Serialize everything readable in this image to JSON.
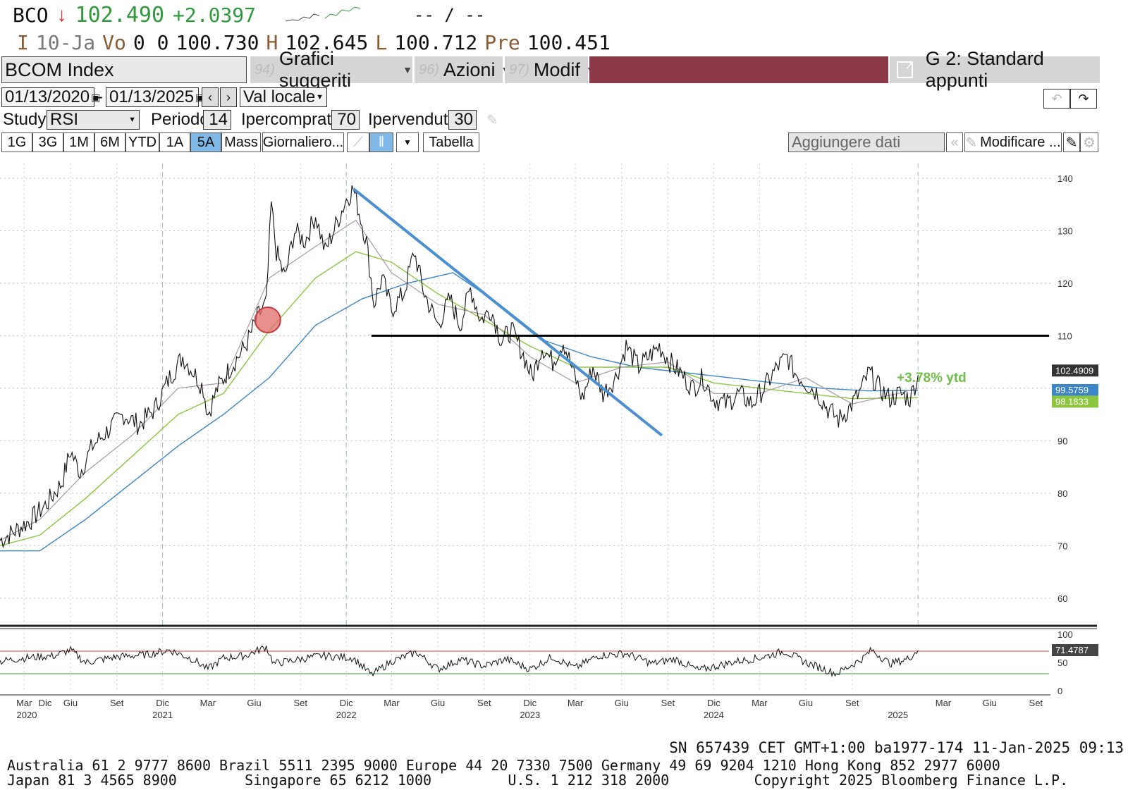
{
  "quote": {
    "ticker": "BCO",
    "arrow": "↓",
    "price": "102.490",
    "change": "+2.0397",
    "time_placeholder": "-- / --"
  },
  "ohlc": {
    "i_label": "I",
    "date": "10-Ja",
    "vo_label": "Vo",
    "vo_value": "0 0",
    "open": "100.730",
    "h_label": "H",
    "high": "102.645",
    "l_label": "L",
    "low": "100.712",
    "pre_label": "Pre",
    "prev": "100.451"
  },
  "toolbar": {
    "security": "BCOM Index",
    "menu1_num": "94)",
    "menu1": "Grafici suggeriti",
    "menu2_num": "96)",
    "menu2": "Azioni",
    "menu3_num": "97)",
    "menu3": "Modif",
    "template": "G 2: Standard appunti"
  },
  "controls": {
    "start_date": "01/13/2020",
    "end_date": "01/13/2025",
    "currency": "Val locale",
    "study_label": "Study",
    "study_value": "RSI",
    "period_label": "Periodo",
    "period_value": "14",
    "overbought_label": "Ipercomprato",
    "overbought_value": "70",
    "oversold_label": "Ipervenduto",
    "oversold_value": "30"
  },
  "range_buttons": [
    "1G",
    "3G",
    "1M",
    "6M",
    "YTD",
    "1A",
    "5A",
    "Mass"
  ],
  "range_selected": "5A",
  "frequency": "Giornaliero...",
  "table_label": "Tabella",
  "add_data": "Aggiungere dati",
  "modify_label": "Modificare ...",
  "colors": {
    "price": "#111111",
    "ma_blue": "#3d86c6",
    "ma_green": "#8cc63f",
    "ma_gray": "#a89aa8",
    "trend": "#4a90d0",
    "support": "#000000",
    "toolbar_bar": "#8d3a48",
    "positive": "#2f9a3c"
  },
  "annotation": "+3.78% ytd",
  "chart_data": {
    "type": "line",
    "x_range": [
      "2020-01-13",
      "2025-09-30"
    ],
    "ylim": [
      55,
      142
    ],
    "y_ticks": [
      140,
      130,
      120,
      110,
      100,
      90,
      80,
      70,
      60
    ],
    "grid": true,
    "price_series": [
      [
        "2020-01-13",
        71
      ],
      [
        "2020-02-15",
        73
      ],
      [
        "2020-03-15",
        75
      ],
      [
        "2020-04-15",
        78
      ],
      [
        "2020-05-15",
        82
      ],
      [
        "2020-06-01",
        88
      ],
      [
        "2020-06-20",
        84
      ],
      [
        "2020-07-15",
        89
      ],
      [
        "2020-08-15",
        92
      ],
      [
        "2020-09-15",
        95
      ],
      [
        "2020-10-15",
        93
      ],
      [
        "2020-11-15",
        96
      ],
      [
        "2020-12-15",
        102
      ],
      [
        "2021-01-10",
        106
      ],
      [
        "2021-02-01",
        103
      ],
      [
        "2021-02-20",
        100
      ],
      [
        "2021-03-01",
        95
      ],
      [
        "2021-03-20",
        100
      ],
      [
        "2021-04-15",
        104
      ],
      [
        "2021-05-15",
        108
      ],
      [
        "2021-06-10",
        114
      ],
      [
        "2021-06-25",
        116
      ],
      [
        "2021-07-05",
        135
      ],
      [
        "2021-07-15",
        126
      ],
      [
        "2021-08-01",
        121
      ],
      [
        "2021-08-20",
        130
      ],
      [
        "2021-09-10",
        128
      ],
      [
        "2021-10-01",
        133
      ],
      [
        "2021-10-20",
        126
      ],
      [
        "2021-11-10",
        131
      ],
      [
        "2021-12-01",
        136
      ],
      [
        "2021-12-15",
        138
      ],
      [
        "2022-01-10",
        128
      ],
      [
        "2022-01-25",
        116
      ],
      [
        "2022-02-10",
        121
      ],
      [
        "2022-03-01",
        115
      ],
      [
        "2022-03-25",
        118
      ],
      [
        "2022-04-15",
        126
      ],
      [
        "2022-05-05",
        118
      ],
      [
        "2022-06-01",
        112
      ],
      [
        "2022-06-25",
        117
      ],
      [
        "2022-07-15",
        112
      ],
      [
        "2022-08-05",
        119
      ],
      [
        "2022-08-25",
        113
      ],
      [
        "2022-09-15",
        115
      ],
      [
        "2022-10-05",
        109
      ],
      [
        "2022-10-25",
        111
      ],
      [
        "2022-11-15",
        107
      ],
      [
        "2022-12-05",
        102
      ],
      [
        "2022-12-25",
        108
      ],
      [
        "2023-01-15",
        105
      ],
      [
        "2023-02-05",
        109
      ],
      [
        "2023-02-25",
        103
      ],
      [
        "2023-03-15",
        98
      ],
      [
        "2023-04-05",
        104
      ],
      [
        "2023-04-25",
        99
      ],
      [
        "2023-05-20",
        102
      ],
      [
        "2023-06-10",
        108
      ],
      [
        "2023-07-05",
        104
      ],
      [
        "2023-07-25",
        106
      ],
      [
        "2023-08-15",
        108
      ],
      [
        "2023-09-05",
        105
      ],
      [
        "2023-09-25",
        103
      ],
      [
        "2023-10-20",
        100
      ],
      [
        "2023-11-10",
        102
      ],
      [
        "2023-12-01",
        98
      ],
      [
        "2023-12-25",
        97
      ],
      [
        "2024-01-20",
        99
      ],
      [
        "2024-02-15",
        97
      ],
      [
        "2024-03-10",
        100
      ],
      [
        "2024-04-05",
        104
      ],
      [
        "2024-04-25",
        106
      ],
      [
        "2024-05-10",
        103
      ],
      [
        "2024-06-01",
        101
      ],
      [
        "2024-06-25",
        99
      ],
      [
        "2024-07-15",
        96
      ],
      [
        "2024-08-05",
        94
      ],
      [
        "2024-08-25",
        96
      ],
      [
        "2024-09-15",
        99
      ],
      [
        "2024-10-05",
        103
      ],
      [
        "2024-10-25",
        100
      ],
      [
        "2024-11-15",
        98
      ],
      [
        "2024-12-05",
        99
      ],
      [
        "2024-12-25",
        98
      ],
      [
        "2025-01-10",
        102.49
      ]
    ],
    "ma_blue": [
      [
        "2020-01-13",
        69
      ],
      [
        "2020-04-01",
        69
      ],
      [
        "2020-07-01",
        75
      ],
      [
        "2020-10-01",
        82
      ],
      [
        "2021-01-01",
        89
      ],
      [
        "2021-04-01",
        95
      ],
      [
        "2021-07-01",
        102
      ],
      [
        "2021-10-01",
        112
      ],
      [
        "2022-01-01",
        117
      ],
      [
        "2022-04-01",
        120
      ],
      [
        "2022-07-01",
        122
      ],
      [
        "2022-10-01",
        116
      ],
      [
        "2023-01-01",
        109
      ],
      [
        "2023-04-01",
        106
      ],
      [
        "2023-07-01",
        104
      ],
      [
        "2023-10-01",
        103
      ],
      [
        "2024-01-01",
        102
      ],
      [
        "2024-04-01",
        101
      ],
      [
        "2024-07-01",
        100
      ],
      [
        "2024-10-01",
        99.5
      ],
      [
        "2025-01-10",
        99.58
      ]
    ],
    "ma_green": [
      [
        "2020-01-13",
        70
      ],
      [
        "2020-04-01",
        72
      ],
      [
        "2020-07-01",
        79
      ],
      [
        "2020-10-01",
        87
      ],
      [
        "2021-01-01",
        95
      ],
      [
        "2021-04-01",
        99
      ],
      [
        "2021-07-01",
        111
      ],
      [
        "2021-10-01",
        121
      ],
      [
        "2021-12-20",
        126
      ],
      [
        "2022-03-01",
        124
      ],
      [
        "2022-06-01",
        118
      ],
      [
        "2022-09-01",
        113
      ],
      [
        "2022-12-01",
        108
      ],
      [
        "2023-03-01",
        104
      ],
      [
        "2023-06-01",
        104
      ],
      [
        "2023-09-01",
        104
      ],
      [
        "2023-12-01",
        101
      ],
      [
        "2024-03-01",
        100
      ],
      [
        "2024-06-01",
        99
      ],
      [
        "2024-09-01",
        98
      ],
      [
        "2025-01-10",
        98.18
      ]
    ],
    "ma_gray": [
      [
        "2020-01-13",
        71
      ],
      [
        "2020-04-01",
        75
      ],
      [
        "2020-07-01",
        84
      ],
      [
        "2020-10-01",
        91
      ],
      [
        "2021-01-01",
        100
      ],
      [
        "2021-04-01",
        101
      ],
      [
        "2021-07-01",
        121
      ],
      [
        "2021-10-01",
        127
      ],
      [
        "2021-12-20",
        132
      ],
      [
        "2022-03-01",
        122
      ],
      [
        "2022-06-01",
        116
      ],
      [
        "2022-09-01",
        114
      ],
      [
        "2022-12-01",
        106
      ],
      [
        "2023-03-01",
        101
      ],
      [
        "2023-06-01",
        104
      ],
      [
        "2023-09-01",
        105
      ],
      [
        "2023-12-01",
        99
      ],
      [
        "2024-03-01",
        99
      ],
      [
        "2024-06-01",
        102
      ],
      [
        "2024-09-01",
        97
      ],
      [
        "2024-12-01",
        99
      ],
      [
        "2025-01-10",
        100
      ]
    ],
    "trendline": [
      [
        "2021-12-15",
        138
      ],
      [
        "2023-08-20",
        91
      ]
    ],
    "support_line": [
      [
        "2022-01-20",
        110
      ],
      [
        "2025-09-30",
        110
      ]
    ],
    "highlight_circle": {
      "x": "2021-06-28",
      "y": 113
    },
    "last_labels": [
      {
        "value": "102.4909",
        "color": "#333333"
      },
      {
        "value": "99.5759",
        "color": "#3d86c6"
      },
      {
        "value": "98.1833",
        "color": "#8cc63f"
      }
    ],
    "rsi": {
      "ylim": [
        0,
        100
      ],
      "ticks": [
        100,
        50,
        0
      ],
      "overbought": 70,
      "oversold": 30,
      "last_value": "71.4787",
      "series": [
        [
          "2020-01-13",
          52
        ],
        [
          "2020-03-01",
          58
        ],
        [
          "2020-05-01",
          62
        ],
        [
          "2020-06-01",
          72
        ],
        [
          "2020-07-01",
          50
        ],
        [
          "2020-09-01",
          60
        ],
        [
          "2020-11-01",
          64
        ],
        [
          "2020-12-15",
          72
        ],
        [
          "2021-02-01",
          55
        ],
        [
          "2021-03-01",
          38
        ],
        [
          "2021-04-01",
          58
        ],
        [
          "2021-05-15",
          62
        ],
        [
          "2021-06-25",
          78
        ],
        [
          "2021-07-10",
          48
        ],
        [
          "2021-09-01",
          56
        ],
        [
          "2021-10-15",
          62
        ],
        [
          "2021-12-15",
          58
        ],
        [
          "2022-01-20",
          28
        ],
        [
          "2022-03-01",
          52
        ],
        [
          "2022-04-20",
          68
        ],
        [
          "2022-06-01",
          38
        ],
        [
          "2022-07-15",
          55
        ],
        [
          "2022-09-01",
          44
        ],
        [
          "2022-10-15",
          56
        ],
        [
          "2022-12-01",
          38
        ],
        [
          "2023-01-15",
          60
        ],
        [
          "2023-03-01",
          40
        ],
        [
          "2023-04-15",
          62
        ],
        [
          "2023-06-10",
          66
        ],
        [
          "2023-08-01",
          48
        ],
        [
          "2023-09-15",
          56
        ],
        [
          "2023-11-01",
          36
        ],
        [
          "2024-01-15",
          52
        ],
        [
          "2024-03-01",
          58
        ],
        [
          "2024-04-20",
          70
        ],
        [
          "2024-06-01",
          50
        ],
        [
          "2024-08-01",
          30
        ],
        [
          "2024-09-20",
          56
        ],
        [
          "2024-10-10",
          72
        ],
        [
          "2024-11-15",
          48
        ],
        [
          "2024-12-20",
          56
        ],
        [
          "2025-01-10",
          71.48
        ]
      ]
    },
    "x_month_labels": [
      {
        "label": "Dic",
        "date": "2019-12-01"
      },
      {
        "label": "Mar",
        "date": "2020-03-01"
      },
      {
        "label": "Giu",
        "date": "2020-06-01"
      },
      {
        "label": "Set",
        "date": "2020-09-01"
      },
      {
        "label": "Dic",
        "date": "2020-12-01"
      },
      {
        "label": "Mar",
        "date": "2021-03-01"
      },
      {
        "label": "Giu",
        "date": "2021-06-01"
      },
      {
        "label": "Set",
        "date": "2021-09-01"
      },
      {
        "label": "Dic",
        "date": "2021-12-01"
      },
      {
        "label": "Mar",
        "date": "2022-03-01"
      },
      {
        "label": "Giu",
        "date": "2022-06-01"
      },
      {
        "label": "Set",
        "date": "2022-09-01"
      },
      {
        "label": "Dic",
        "date": "2022-12-01"
      },
      {
        "label": "Mar",
        "date": "2023-03-01"
      },
      {
        "label": "Giu",
        "date": "2023-06-01"
      },
      {
        "label": "Set",
        "date": "2023-09-01"
      },
      {
        "label": "Dic",
        "date": "2023-12-01"
      },
      {
        "label": "Mar",
        "date": "2024-03-01"
      },
      {
        "label": "Giu",
        "date": "2024-06-01"
      },
      {
        "label": "Set",
        "date": "2024-09-01"
      }
    ],
    "x_year_labels": [
      {
        "label": "2020",
        "date": "2019-12-01"
      },
      {
        "label": "2021",
        "date": "2020-12-01"
      },
      {
        "label": "2022",
        "date": "2021-12-01"
      },
      {
        "label": "2023",
        "date": "2022-12-01"
      },
      {
        "label": "2024",
        "date": "2023-12-01"
      },
      {
        "label": "2025",
        "date": "2024-12-01"
      }
    ],
    "year_divider_dates": [
      "2020-12-01",
      "2021-12-01"
    ]
  },
  "footer": {
    "session": "SN 657439 CET  GMT+1:00 ba1977-174 11-Jan-2025 09:13",
    "contacts_line1": "Australia 61 2 9777 8600 Brazil 5511 2395 9000 Europe 44 20 7330 7500 Germany 49 69 9204 1210 Hong Kong 852 2977 6000",
    "contacts_line2": "Japan 81 3 4565 8900        Singapore 65 6212 1000         U.S. 1 212 318 2000          Copyright 2025 Bloomberg Finance L.P."
  }
}
